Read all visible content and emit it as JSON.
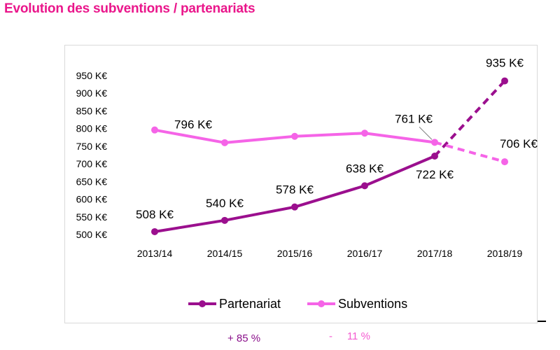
{
  "title": "Evolution des subventions / partenariats",
  "colors": {
    "title": "#ea168b",
    "partenariat": "#9b0f8e",
    "subventions": "#f564e7",
    "pct_partenariat": "#8a0f8a",
    "pct_subventions": "#f45bd0"
  },
  "chart_data": {
    "type": "line",
    "categories": [
      "2013/14",
      "2014/15",
      "2015/16",
      "2016/17",
      "2017/18",
      "2018/19"
    ],
    "ylim": [
      500,
      950
    ],
    "yticks": [
      500,
      550,
      600,
      650,
      700,
      750,
      800,
      850,
      900,
      950
    ],
    "ytick_labels": [
      "500 K€",
      "550 K€",
      "600 K€",
      "650 K€",
      "700 K€",
      "750 K€",
      "800 K€",
      "850 K€",
      "900 K€",
      "950 K€"
    ],
    "grid": false,
    "legend_position": "bottom",
    "series": [
      {
        "name": "Partenariat",
        "values": [
          508,
          540,
          578,
          638,
          722,
          935
        ],
        "projected_from_index": 4,
        "labels": [
          "508 K€",
          "540 K€",
          "578 K€",
          "638 K€",
          "722 K€",
          "935 K€"
        ]
      },
      {
        "name": "Subventions",
        "values": [
          796,
          760,
          778,
          787,
          761,
          706
        ],
        "projected_from_index": 4,
        "labels": [
          "796 K€",
          "",
          "",
          "",
          "761 K€",
          "706 K€"
        ]
      }
    ]
  },
  "annotations": {
    "partenariat_change": "+ 85 %",
    "subventions_change": "-     11 %"
  }
}
